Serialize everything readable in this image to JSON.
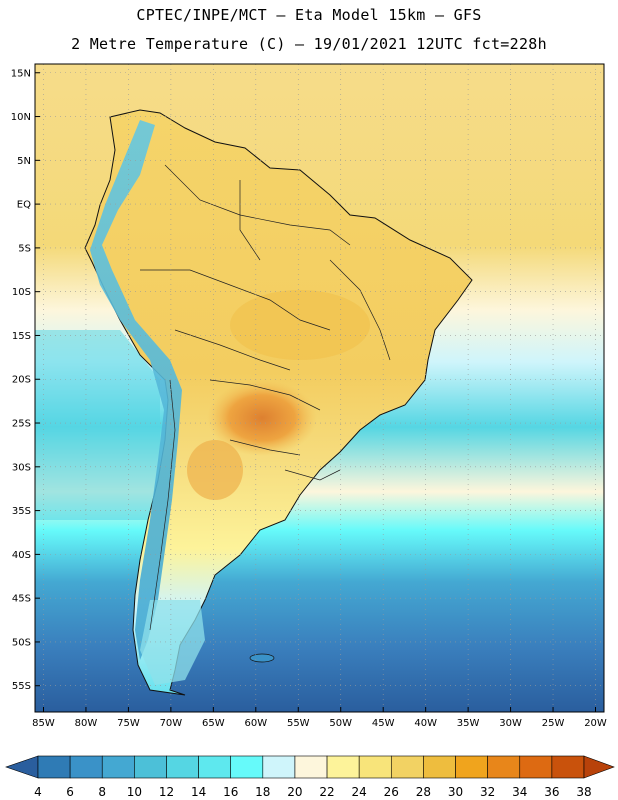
{
  "header": {
    "title_line1": "CPTEC/INPE/MCT —  Eta Model 15km — GFS",
    "title_line2": "2 Metre Temperature (C) — 19/01/2021 12UTC fct=228h"
  },
  "map": {
    "lat_labels": [
      "15N",
      "10N",
      "5N",
      "EQ",
      "5S",
      "10S",
      "15S",
      "20S",
      "25S",
      "30S",
      "35S",
      "40S",
      "45S",
      "50S",
      "55S"
    ],
    "lat_values": [
      15,
      10,
      5,
      0,
      -5,
      -10,
      -15,
      -20,
      -25,
      -30,
      -35,
      -40,
      -45,
      -50,
      -55
    ],
    "lon_labels": [
      "85W",
      "80W",
      "75W",
      "70W",
      "65W",
      "60W",
      "55W",
      "50W",
      "45W",
      "40W",
      "35W",
      "30W",
      "25W",
      "20W"
    ],
    "lon_values": [
      -85,
      -80,
      -75,
      -70,
      -65,
      -60,
      -55,
      -50,
      -45,
      -40,
      -35,
      -30,
      -25,
      -20
    ],
    "extent": {
      "lon_min": -86,
      "lon_max": -19,
      "lat_min": -58,
      "lat_max": 16
    }
  },
  "colorbar": {
    "labels": [
      "4",
      "6",
      "8",
      "10",
      "12",
      "14",
      "16",
      "18",
      "20",
      "22",
      "24",
      "26",
      "28",
      "30",
      "32",
      "34",
      "36",
      "38"
    ],
    "colors": [
      "#2a5e9e",
      "#2f7bb5",
      "#3a92c8",
      "#44a8d2",
      "#4cc0d8",
      "#55d6e3",
      "#5ee8ee",
      "#66fafa",
      "#cff5fb",
      "#fdf6dc",
      "#fdf39a",
      "#f8e47a",
      "#f2d263",
      "#eebd3e",
      "#f0a41d",
      "#e8861a",
      "#dd6a12",
      "#c9520c",
      "#b8420a"
    ]
  }
}
